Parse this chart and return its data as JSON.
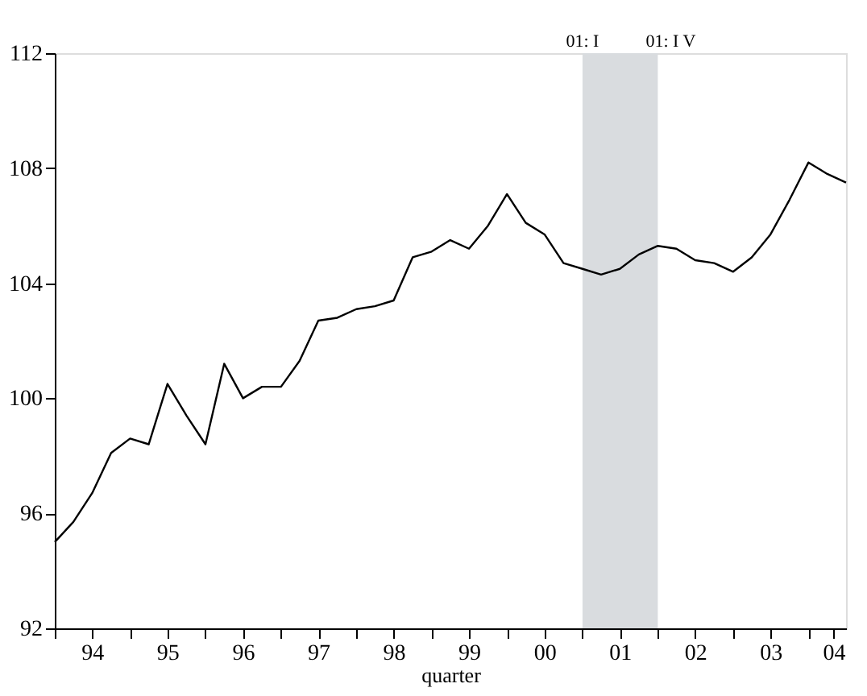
{
  "chart_data": {
    "type": "line",
    "xlabel": "quarter",
    "x": [
      "1994-01",
      "1994-04",
      "1994-07",
      "1994-10",
      "1995-01",
      "1995-04",
      "1995-07",
      "1995-10",
      "1996-01",
      "1996-04",
      "1996-07",
      "1996-10",
      "1997-01",
      "1997-04",
      "1997-07",
      "1997-10",
      "1998-01",
      "1998-04",
      "1998-07",
      "1998-10",
      "1999-01",
      "1999-04",
      "1999-07",
      "1999-10",
      "2000-01",
      "2000-04",
      "2000-07",
      "2000-10",
      "2001-01",
      "2001-04",
      "2001-07",
      "2001-10",
      "2002-01",
      "2002-04",
      "2002-07",
      "2002-10",
      "2003-01",
      "2003-04",
      "2003-07",
      "2003-10",
      "2004-01",
      "2004-04",
      "2004-07"
    ],
    "series": [
      {
        "color": "#000000",
        "values": [
          95.0,
          95.7,
          96.7,
          98.1,
          98.6,
          98.4,
          100.5,
          99.4,
          98.4,
          101.2,
          100.0,
          100.4,
          100.4,
          101.3,
          102.7,
          102.8,
          103.1,
          103.2,
          103.4,
          104.9,
          105.1,
          105.5,
          105.2,
          106.0,
          107.1,
          106.1,
          105.7,
          104.7,
          104.5,
          104.3,
          104.5,
          105.0,
          105.3,
          105.2,
          104.8,
          104.7,
          104.4,
          104.9,
          105.7,
          106.9,
          108.2,
          107.8,
          107.5
        ]
      }
    ],
    "xlim": [
      "1994-01",
      "2004-07"
    ],
    "xticks": [
      {
        "value": "1994-01",
        "label": null
      },
      {
        "value": "1994-07",
        "label": "94"
      },
      {
        "value": "1995-01",
        "label": null
      },
      {
        "value": "1995-07",
        "label": "95"
      },
      {
        "value": "1996-01",
        "label": null
      },
      {
        "value": "1996-07",
        "label": "96"
      },
      {
        "value": "1997-01",
        "label": null
      },
      {
        "value": "1997-07",
        "label": "97"
      },
      {
        "value": "1998-01",
        "label": null
      },
      {
        "value": "1998-07",
        "label": "98"
      },
      {
        "value": "1999-01",
        "label": null
      },
      {
        "value": "1999-07",
        "label": "99"
      },
      {
        "value": "2000-01",
        "label": null
      },
      {
        "value": "2000-07",
        "label": "00"
      },
      {
        "value": "2001-01",
        "label": null
      },
      {
        "value": "2001-07",
        "label": "01"
      },
      {
        "value": "2002-01",
        "label": null
      },
      {
        "value": "2002-07",
        "label": "02"
      },
      {
        "value": "2003-01",
        "label": null
      },
      {
        "value": "2003-07",
        "label": "03"
      },
      {
        "value": "2004-01",
        "label": null
      },
      {
        "value": "2004-05",
        "label": "04"
      }
    ],
    "ylim": [
      92,
      112
    ],
    "yticks": [
      92,
      96,
      100,
      104,
      108,
      112
    ],
    "bands": [
      {
        "axis": "x",
        "from": "2001-01",
        "to": "2002-01",
        "color": "#d9dcdf"
      }
    ],
    "annotations": [
      "01: I",
      "01: I V"
    ],
    "marker": "none",
    "line_style": "solid"
  }
}
